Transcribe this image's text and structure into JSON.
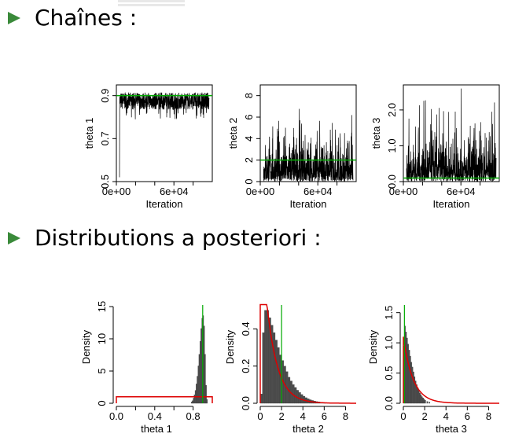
{
  "bullets": {
    "chains": "Chaînes :",
    "posteriors": "Distributions a posteriori :"
  },
  "colors": {
    "bullet": "#3a8a3a",
    "trace": "#000000",
    "hist_fill": "#4d4d4d",
    "true_value": "#00aa00",
    "prior": "#dd0000"
  },
  "chart_data": [
    {
      "type": "line",
      "panel": "trace-theta1",
      "xlabel": "Iteration",
      "ylabel": "theta 1",
      "xticks": [
        "0e+00",
        "6e+04"
      ],
      "xlim": [
        0,
        100000
      ],
      "yticks": [
        "0.5",
        "0.7",
        "0.9"
      ],
      "ylim": [
        0.5,
        0.95
      ],
      "series_summary": {
        "mean": 0.875,
        "low": 0.79,
        "high": 0.935
      },
      "hline": 0.9
    },
    {
      "type": "line",
      "panel": "trace-theta2",
      "xlabel": "Iteration",
      "ylabel": "theta 2",
      "xticks": [
        "0e+00",
        "6e+04"
      ],
      "xlim": [
        0,
        100000
      ],
      "yticks": [
        "0",
        "2",
        "4",
        "6",
        "8"
      ],
      "ylim": [
        0,
        9
      ],
      "series_summary": {
        "mean": 1.6,
        "low": 0.05,
        "high": 8.6
      },
      "hline": 2
    },
    {
      "type": "line",
      "panel": "trace-theta3",
      "xlabel": "Iteration",
      "ylabel": "theta 3",
      "xticks": [
        "0e+00",
        "6e+04"
      ],
      "xlim": [
        0,
        100000
      ],
      "yticks": [
        "0.0",
        "1.0",
        "2.0"
      ],
      "ylim": [
        0,
        2.7
      ],
      "series_summary": {
        "mean": 0.45,
        "low": 0.0,
        "high": 2.6
      },
      "hline": 0.1
    },
    {
      "type": "bar",
      "panel": "hist-theta1",
      "xlabel": "theta 1",
      "ylabel": "Density",
      "xticks": [
        "0.0",
        "0.4",
        "0.8"
      ],
      "xlim": [
        0,
        1
      ],
      "yticks": [
        "0",
        "5",
        "10",
        "15"
      ],
      "ylim": [
        0,
        15
      ],
      "bins": [
        0.78,
        0.79,
        0.8,
        0.81,
        0.82,
        0.83,
        0.84,
        0.85,
        0.86,
        0.87,
        0.88,
        0.89,
        0.9,
        0.91,
        0.92,
        0.93,
        0.94
      ],
      "values": [
        0.2,
        0.4,
        0.8,
        1.3,
        2.0,
        3.0,
        4.2,
        5.8,
        7.6,
        9.6,
        11.6,
        13.2,
        13.6,
        12.0,
        7.6,
        2.8,
        0.6
      ],
      "prior": {
        "kind": "uniform",
        "value": 1
      },
      "vline": 0.9
    },
    {
      "type": "bar",
      "panel": "hist-theta2",
      "xlabel": "theta 2",
      "ylabel": "Density",
      "xticks": [
        "0",
        "2",
        "4",
        "6",
        "8"
      ],
      "xlim": [
        0,
        9
      ],
      "yticks": [
        "0.0",
        "0.2",
        "0.4"
      ],
      "ylim": [
        0,
        0.52
      ],
      "bins": [
        0.0,
        0.2,
        0.4,
        0.6,
        0.8,
        1.0,
        1.2,
        1.4,
        1.6,
        1.8,
        2.0,
        2.2,
        2.4,
        2.6,
        2.8,
        3.0,
        3.2,
        3.4,
        3.6,
        3.8,
        4.0,
        4.2,
        4.4,
        4.6,
        4.8,
        5.0,
        5.2,
        5.4,
        5.6,
        5.8,
        6.0
      ],
      "values": [
        0.05,
        0.38,
        0.5,
        0.5,
        0.46,
        0.42,
        0.38,
        0.34,
        0.3,
        0.26,
        0.23,
        0.2,
        0.17,
        0.14,
        0.12,
        0.1,
        0.085,
        0.07,
        0.058,
        0.047,
        0.038,
        0.03,
        0.024,
        0.019,
        0.015,
        0.012,
        0.009,
        0.007,
        0.005,
        0.004,
        0.003
      ],
      "prior": {
        "kind": "exponential",
        "rate": 1
      },
      "vline": 2
    },
    {
      "type": "bar",
      "panel": "hist-theta3",
      "xlabel": "theta 3",
      "ylabel": "Density",
      "xticks": [
        "0",
        "2",
        "4",
        "6",
        "8"
      ],
      "xlim": [
        0,
        9
      ],
      "yticks": [
        "0.0",
        "0.5",
        "1.0",
        "1.5"
      ],
      "ylim": [
        0,
        1.6
      ],
      "bins": [
        0.0,
        0.1,
        0.2,
        0.3,
        0.4,
        0.5,
        0.6,
        0.7,
        0.8,
        0.9,
        1.0,
        1.1,
        1.2,
        1.3,
        1.4,
        1.5,
        1.6,
        1.7,
        1.8,
        1.9,
        2.0,
        2.2,
        2.4
      ],
      "values": [
        0.95,
        1.28,
        1.18,
        1.08,
        0.98,
        0.88,
        0.78,
        0.68,
        0.6,
        0.52,
        0.44,
        0.37,
        0.31,
        0.26,
        0.21,
        0.17,
        0.14,
        0.11,
        0.09,
        0.07,
        0.05,
        0.03,
        0.02
      ],
      "prior": {
        "kind": "exponential",
        "rate": 1.1
      },
      "vline": 0.1
    }
  ]
}
